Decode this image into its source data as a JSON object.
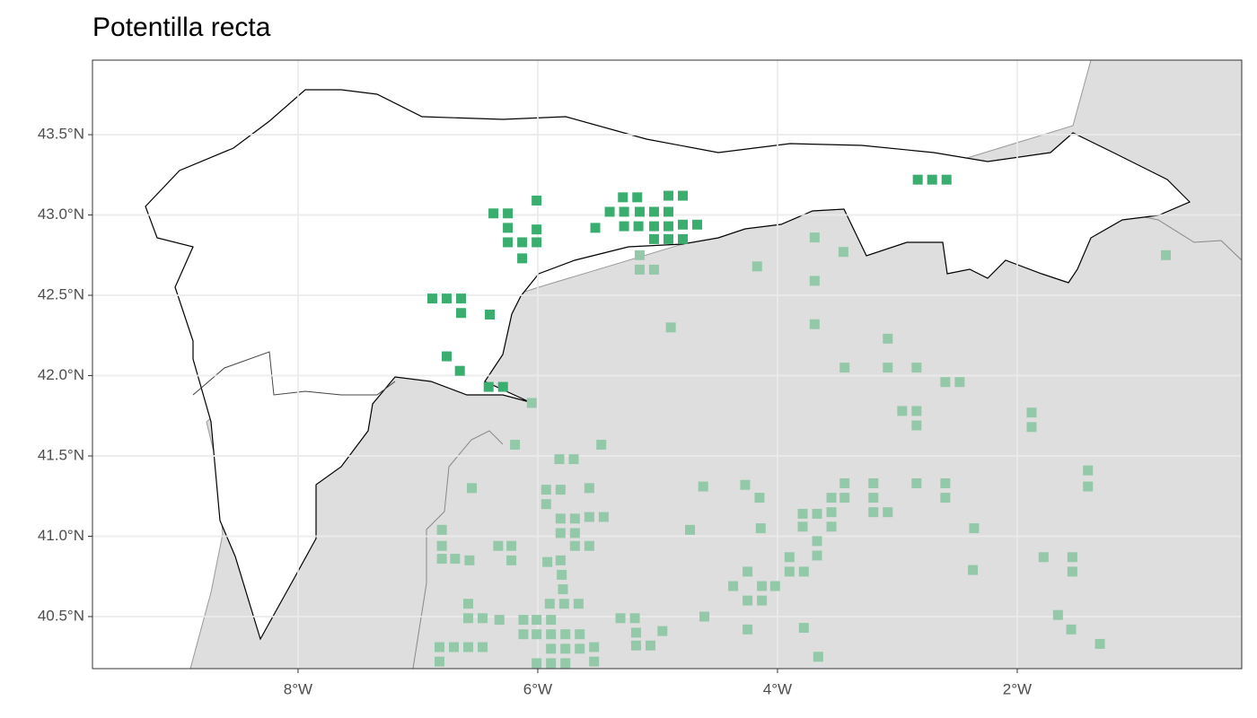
{
  "chart_data": {
    "type": "scatter",
    "title": "Potentilla recta",
    "xlim": [
      -9.715,
      -0.127
    ],
    "ylim": [
      40.176,
      43.964
    ],
    "xticks": [
      {
        "value": -8,
        "label": "8°W"
      },
      {
        "value": -6,
        "label": "6°W"
      },
      {
        "value": -4,
        "label": "4°W"
      },
      {
        "value": -2,
        "label": "2°W"
      }
    ],
    "yticks": [
      {
        "value": 40.5,
        "label": "40.5°N"
      },
      {
        "value": 41.0,
        "label": "41.0°N"
      },
      {
        "value": 41.5,
        "label": "41.5°N"
      },
      {
        "value": 42.0,
        "label": "42.0°N"
      },
      {
        "value": 42.5,
        "label": "42.5°N"
      },
      {
        "value": 43.0,
        "label": "43.0°N"
      },
      {
        "value": 43.5,
        "label": "43.5°N"
      }
    ],
    "grid": true,
    "series": [
      {
        "color": "#3aae6e",
        "x": [
          -6.01,
          -6.37,
          -6.25,
          -6.25,
          -6.01,
          -6.25,
          -6.13,
          -6.01,
          -6.13,
          -5.29,
          -5.17,
          -4.91,
          -4.79,
          -5.4,
          -5.28,
          -5.15,
          -5.03,
          -4.91,
          -5.52,
          -5.28,
          -5.16,
          -5.03,
          -4.91,
          -4.79,
          -4.67,
          -5.03,
          -4.91,
          -4.79,
          -2.83,
          -2.71,
          -2.59,
          -6.88,
          -6.76,
          -6.64,
          -6.64,
          -6.4,
          -6.76,
          -6.65,
          -6.41,
          -6.29
        ],
        "y": [
          43.09,
          43.01,
          43.01,
          42.92,
          42.91,
          42.83,
          42.83,
          42.83,
          42.73,
          43.11,
          43.11,
          43.12,
          43.12,
          43.02,
          43.02,
          43.02,
          43.02,
          43.02,
          42.92,
          42.93,
          42.93,
          42.93,
          42.93,
          42.94,
          42.94,
          42.85,
          42.85,
          42.85,
          43.22,
          43.22,
          43.22,
          42.48,
          42.48,
          42.48,
          42.39,
          42.38,
          42.12,
          42.03,
          41.93,
          41.93
        ]
      },
      {
        "color": "#93c9a9",
        "x": [
          -3.69,
          -5.15,
          -5.15,
          -5.03,
          -3.45,
          -4.17,
          -3.69,
          -3.69,
          -4.89,
          -3.08,
          -3.44,
          -3.08,
          -2.84,
          -2.6,
          -2.48,
          -2.96,
          -2.84,
          -2.84,
          -1.88,
          -1.88,
          -6.05,
          -6.19,
          -5.47,
          -5.82,
          -5.7,
          -1.41,
          -1.41,
          -6.55,
          -5.93,
          -5.81,
          -5.57,
          -5.93,
          -4.62,
          -4.27,
          -4.15,
          -3.44,
          -3.2,
          -2.84,
          -2.6,
          -3.55,
          -3.44,
          -3.2,
          -2.6,
          -3.79,
          -3.67,
          -3.55,
          -3.2,
          -3.08,
          -5.81,
          -5.69,
          -5.57,
          -5.45,
          -5.81,
          -5.69,
          -4.73,
          -4.14,
          -3.79,
          -3.55,
          -6.8,
          -6.8,
          -6.33,
          -6.22,
          -3.67,
          -2.36,
          -5.81,
          -5.69,
          -5.57,
          -6.8,
          -6.69,
          -6.57,
          -6.22,
          -5.92,
          -3.9,
          -3.67,
          -1.78,
          -1.54,
          -5.8,
          -4.25,
          -3.9,
          -3.78,
          -2.37,
          -1.54,
          -4.37,
          -4.13,
          -4.02,
          -5.79,
          -4.25,
          -4.13,
          -6.58,
          -5.9,
          -5.78,
          -5.66,
          -6.58,
          -6.46,
          -5.31,
          -5.19,
          -4.61,
          -1.66,
          -6.32,
          -6.12,
          -6.01,
          -5.89,
          -4.96,
          -4.25,
          -3.78,
          -1.55,
          -6.12,
          -6.01,
          -5.89,
          -5.77,
          -5.65,
          -5.18,
          -6.82,
          -6.7,
          -6.58,
          -6.46,
          -5.89,
          -5.77,
          -5.65,
          -5.53,
          -5.18,
          -5.06,
          -1.31,
          -3.66,
          -6.82,
          -6.01,
          -5.89,
          -5.77,
          -5.53,
          -0.76
        ],
        "y": [
          42.86,
          42.75,
          42.66,
          42.66,
          42.77,
          42.68,
          42.59,
          42.32,
          42.3,
          42.23,
          42.05,
          42.05,
          42.05,
          41.96,
          41.96,
          41.78,
          41.78,
          41.69,
          41.77,
          41.68,
          41.83,
          41.57,
          41.57,
          41.48,
          41.48,
          41.41,
          41.31,
          41.3,
          41.29,
          41.29,
          41.3,
          41.2,
          41.31,
          41.32,
          41.24,
          41.33,
          41.33,
          41.33,
          41.33,
          41.24,
          41.24,
          41.24,
          41.24,
          41.14,
          41.14,
          41.15,
          41.15,
          41.15,
          41.11,
          41.11,
          41.12,
          41.12,
          41.02,
          41.02,
          41.04,
          41.05,
          41.06,
          41.06,
          41.04,
          40.94,
          40.94,
          40.94,
          40.97,
          41.05,
          40.85,
          40.94,
          40.94,
          40.86,
          40.86,
          40.85,
          40.85,
          40.84,
          40.87,
          40.88,
          40.87,
          40.87,
          40.76,
          40.78,
          40.78,
          40.78,
          40.79,
          40.78,
          40.69,
          40.69,
          40.69,
          40.67,
          40.6,
          40.6,
          40.58,
          40.58,
          40.58,
          40.58,
          40.49,
          40.49,
          40.49,
          40.49,
          40.5,
          40.51,
          40.48,
          40.48,
          40.48,
          40.48,
          40.41,
          40.42,
          40.43,
          40.42,
          40.39,
          40.39,
          40.39,
          40.39,
          40.39,
          40.4,
          40.31,
          40.31,
          40.31,
          40.31,
          40.3,
          40.3,
          40.3,
          40.31,
          40.32,
          40.32,
          40.33,
          40.25,
          40.22,
          40.21,
          40.21,
          40.21,
          40.22,
          42.75
        ]
      }
    ]
  }
}
